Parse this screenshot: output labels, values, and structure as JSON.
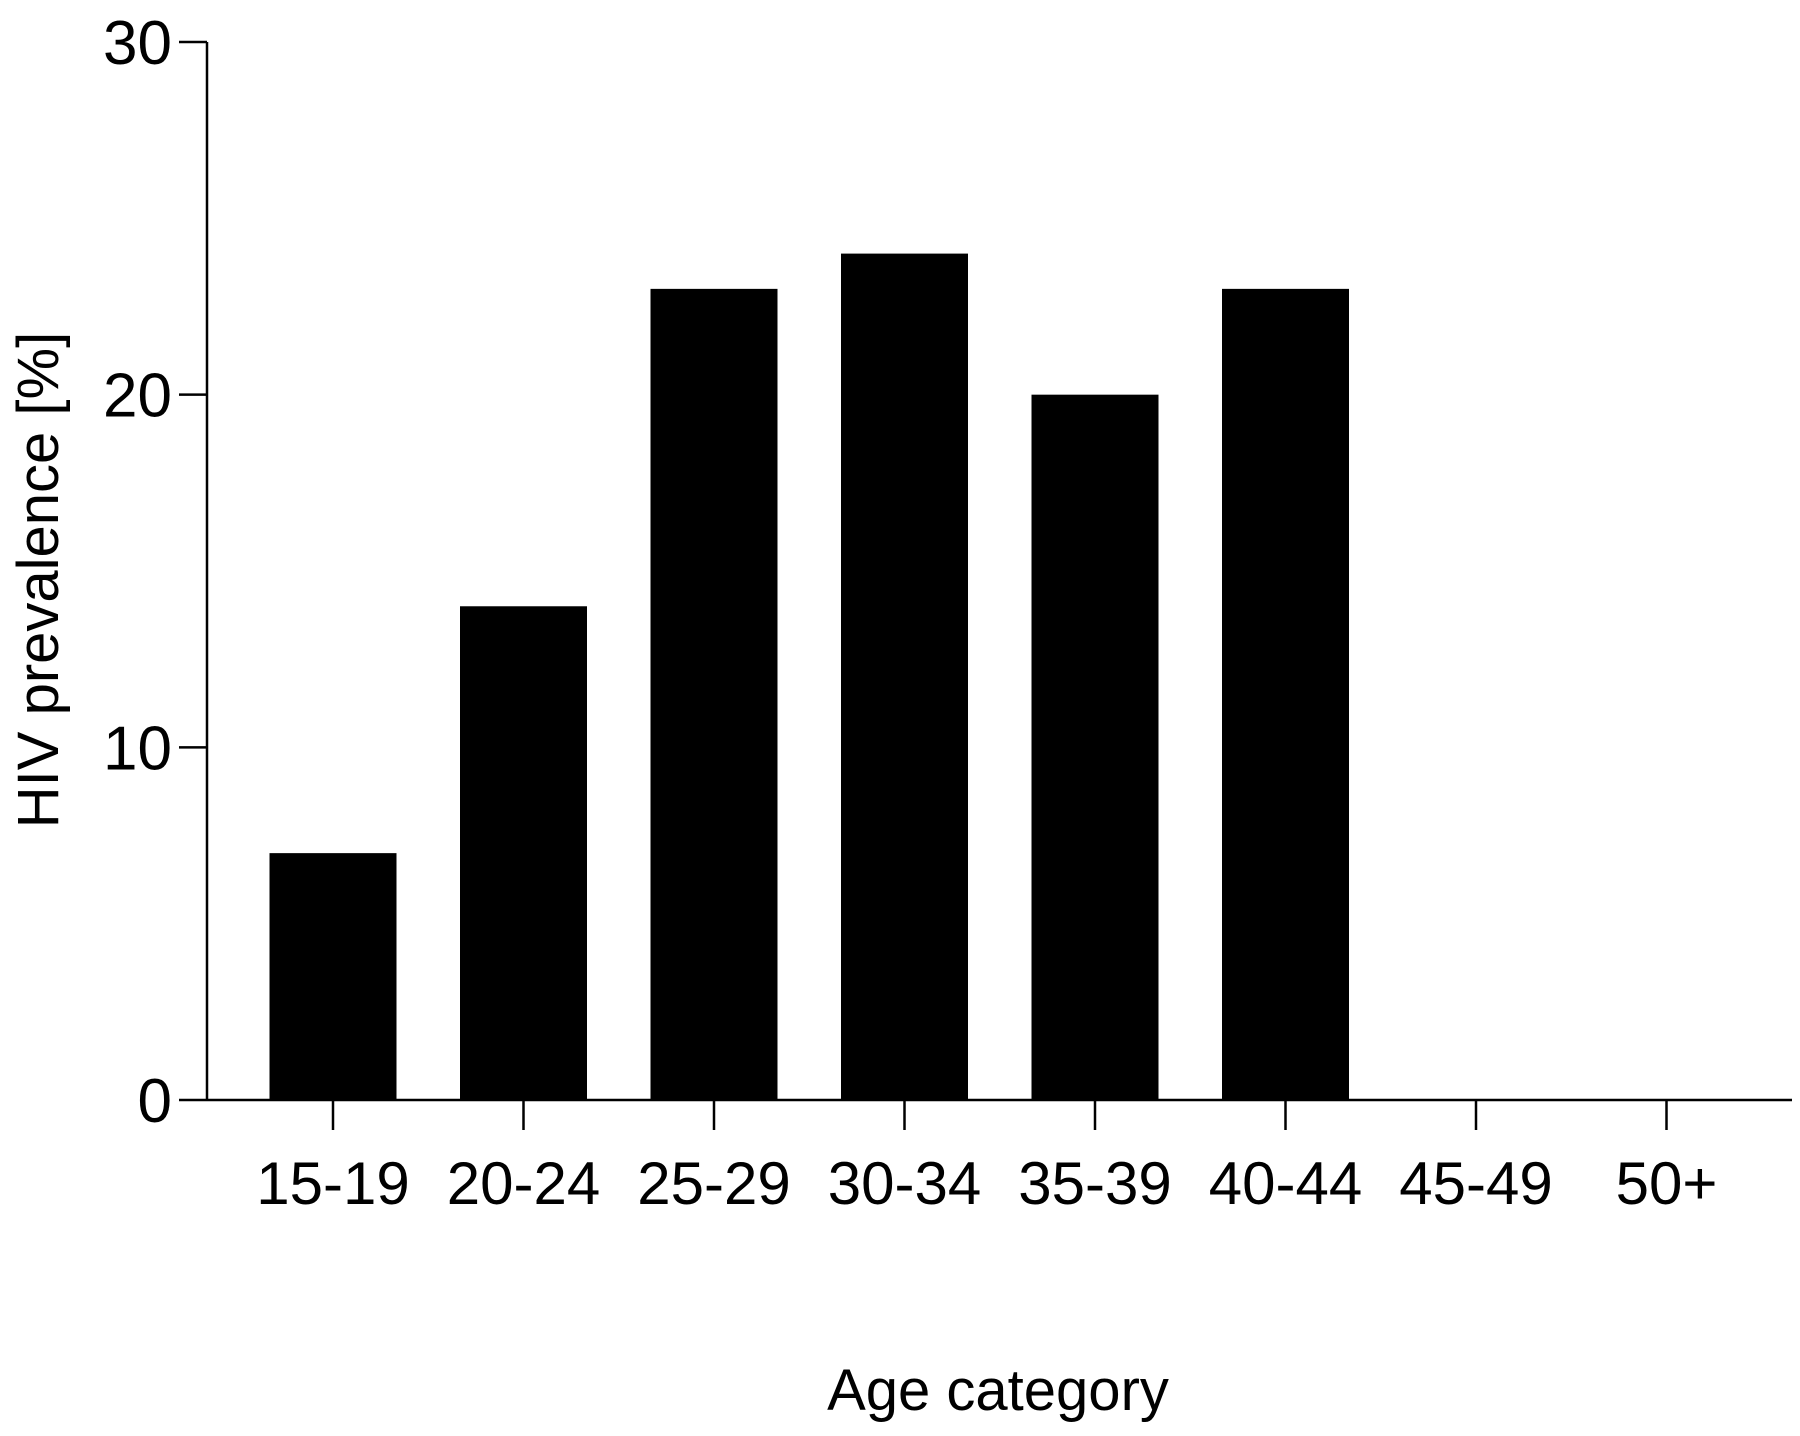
{
  "chart_data": {
    "type": "bar",
    "title": "",
    "xlabel": "Age category",
    "ylabel": "HIV prevalence [%]",
    "categories": [
      "15-19",
      "20-24",
      "25-29",
      "30-34",
      "35-39",
      "40-44",
      "45-49",
      "50+"
    ],
    "values": [
      7,
      14,
      23,
      24,
      20,
      23,
      0,
      0
    ],
    "ylim": [
      0,
      30
    ],
    "yticks": [
      "0",
      "10",
      "20",
      "30"
    ],
    "grid": false,
    "legend": "none",
    "bar_color": "#000000",
    "axis_color": "#000000"
  }
}
